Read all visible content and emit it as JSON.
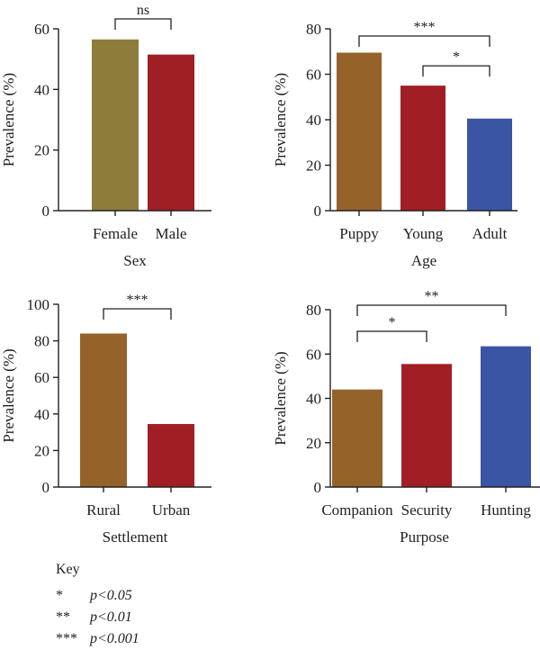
{
  "chart_data": [
    {
      "type": "bar",
      "xlabel": "Sex",
      "ylabel": "Prevalence (%)",
      "ylim": [
        0,
        60
      ],
      "yticks": [
        0,
        20,
        40,
        60
      ],
      "categories": [
        "Female",
        "Male"
      ],
      "values": [
        56.5,
        51.5
      ],
      "colors": [
        "#8c7d3a",
        "#9e1f24"
      ],
      "annotations": [
        {
          "from": "Female",
          "to": "Male",
          "label": "ns"
        }
      ]
    },
    {
      "type": "bar",
      "xlabel": "Age",
      "ylabel": "Prevalence (%)",
      "ylim": [
        0,
        80
      ],
      "yticks": [
        0,
        20,
        40,
        60,
        80
      ],
      "categories": [
        "Puppy",
        "Young",
        "Adult"
      ],
      "values": [
        69.5,
        55,
        40.5
      ],
      "colors": [
        "#95622a",
        "#a11f24",
        "#3a55a4"
      ],
      "annotations": [
        {
          "from": "Puppy",
          "to": "Adult",
          "label": "***"
        },
        {
          "from": "Young",
          "to": "Adult",
          "label": "*"
        }
      ]
    },
    {
      "type": "bar",
      "xlabel": "Settlement",
      "ylabel": "Prevalence (%)",
      "ylim": [
        0,
        100
      ],
      "yticks": [
        0,
        20,
        40,
        60,
        80,
        100
      ],
      "categories": [
        "Rural",
        "Urban"
      ],
      "values": [
        84,
        34.5
      ],
      "colors": [
        "#95622a",
        "#a11f24"
      ],
      "annotations": [
        {
          "from": "Rural",
          "to": "Urban",
          "label": "***"
        }
      ]
    },
    {
      "type": "bar",
      "xlabel": "Purpose",
      "ylabel": "Prevalence (%)",
      "ylim": [
        0,
        80
      ],
      "yticks": [
        0,
        20,
        40,
        60,
        80
      ],
      "categories": [
        "Companion",
        "Security",
        "Hunting"
      ],
      "values": [
        44,
        55.5,
        63.5
      ],
      "colors": [
        "#95622a",
        "#a11f24",
        "#3a55a4"
      ],
      "annotations": [
        {
          "from": "Companion",
          "to": "Security",
          "label": "*"
        },
        {
          "from": "Companion",
          "to": "Hunting",
          "label": "**"
        }
      ]
    }
  ],
  "key": {
    "title": "Key",
    "items": [
      {
        "symbol": "*",
        "text": "p<0.05"
      },
      {
        "symbol": "**",
        "text": "p<0.01"
      },
      {
        "symbol": "***",
        "text": "p<0.001"
      }
    ]
  }
}
